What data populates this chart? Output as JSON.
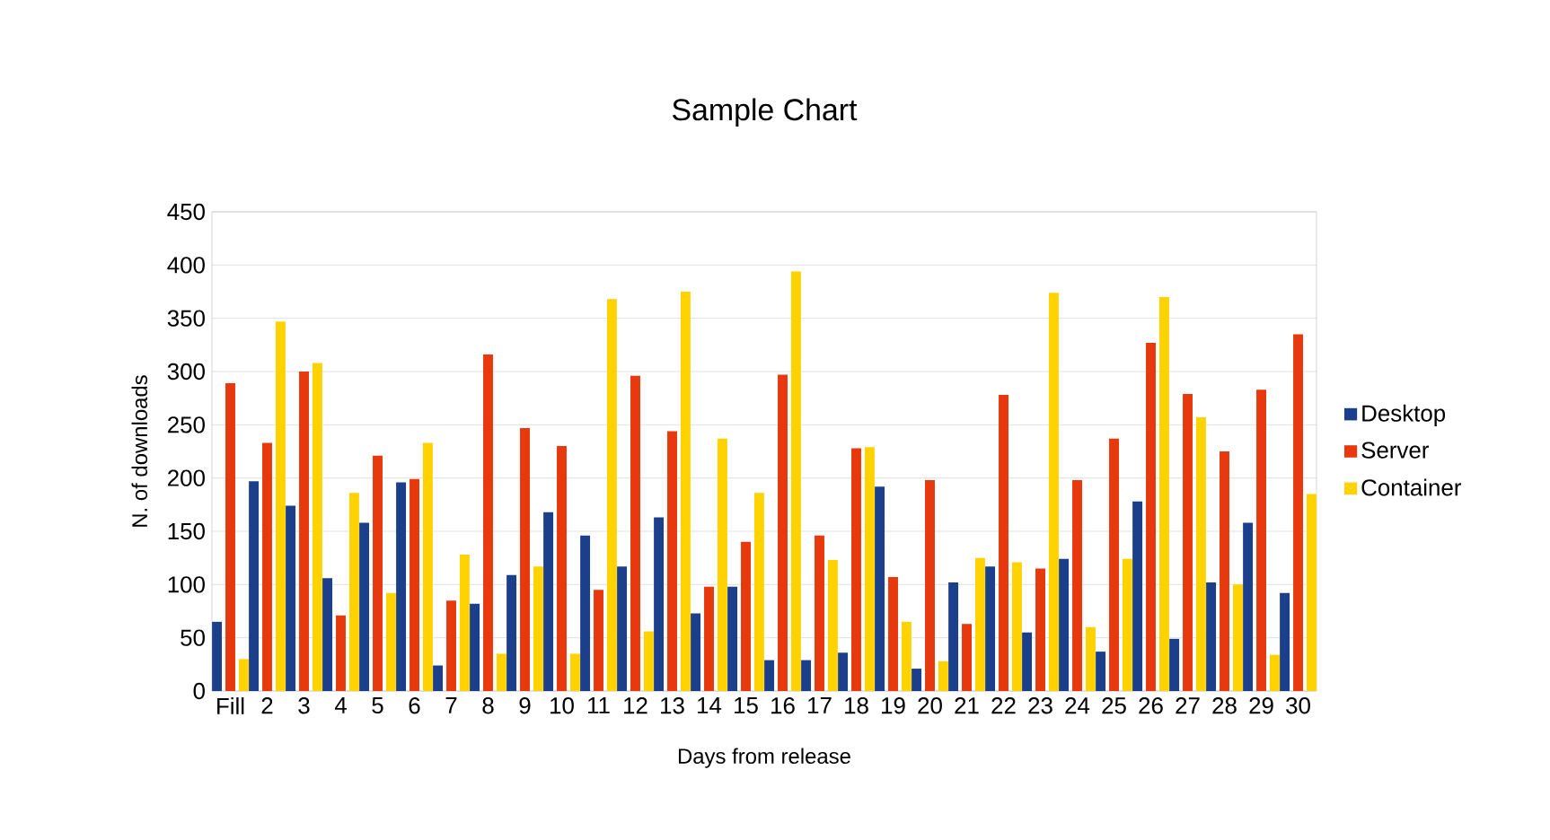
{
  "chart_data": {
    "type": "bar",
    "title": "Sample Chart",
    "xlabel": "Days from release",
    "ylabel": "N. of downloads",
    "categories": [
      "Fill",
      "2",
      "3",
      "4",
      "5",
      "6",
      "7",
      "8",
      "9",
      "10",
      "11",
      "12",
      "13",
      "14",
      "15",
      "16",
      "17",
      "18",
      "19",
      "20",
      "21",
      "22",
      "23",
      "24",
      "25",
      "26",
      "27",
      "28",
      "29",
      "30"
    ],
    "series": [
      {
        "name": "Desktop",
        "color": "#1c3f8c",
        "values": [
          65,
          197,
          174,
          106,
          158,
          196,
          24,
          82,
          109,
          168,
          146,
          117,
          163,
          73,
          98,
          29,
          29,
          36,
          192,
          21,
          102,
          117,
          55,
          124,
          37,
          178,
          49,
          102,
          158,
          92
        ]
      },
      {
        "name": "Server",
        "color": "#e8390e",
        "values": [
          289,
          233,
          300,
          71,
          221,
          199,
          85,
          316,
          247,
          230,
          95,
          296,
          244,
          98,
          140,
          297,
          146,
          228,
          107,
          198,
          63,
          278,
          115,
          198,
          237,
          327,
          279,
          225,
          283,
          335
        ]
      },
      {
        "name": "Container",
        "color": "#ffd200",
        "values": [
          30,
          347,
          308,
          186,
          92,
          233,
          128,
          35,
          117,
          35,
          368,
          56,
          375,
          237,
          186,
          394,
          123,
          229,
          65,
          28,
          125,
          121,
          374,
          60,
          124,
          370,
          257,
          100,
          34,
          185
        ]
      }
    ],
    "ylim": [
      0,
      450
    ],
    "yticks": [
      0,
      50,
      100,
      150,
      200,
      250,
      300,
      350,
      400,
      450
    ],
    "grid": "y",
    "legend": "right"
  }
}
